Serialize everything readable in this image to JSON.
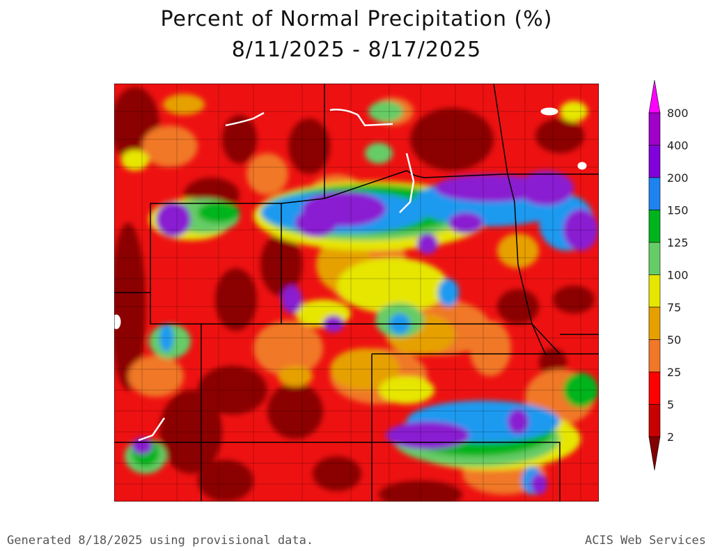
{
  "title": "Percent of Normal Precipitation (%)",
  "subtitle": "8/11/2025 - 8/17/2025",
  "footer_left": "Generated 8/18/2025 using provisional data.",
  "footer_right": "ACIS Web Services",
  "legend": {
    "labels": [
      "800",
      "400",
      "200",
      "150",
      "125",
      "100",
      "75",
      "50",
      "25",
      "5",
      "2"
    ],
    "colors": {
      "top_arrow": "#ff00ff",
      "800": "#a000c8",
      "400": "#8200dc",
      "200": "#1e82f0",
      "150": "#00b41e",
      "125": "#66cc66",
      "100": "#e6e600",
      "75": "#e6a000",
      "50": "#f07828",
      "25": "#ff0000",
      "5": "#c80000",
      "2": "#820000"
    }
  },
  "map_colors": {
    "dark_red": "#8b0000",
    "red": "#ee1111",
    "orange": "#f07828",
    "light_orange": "#e6a000",
    "yellow": "#e6e600",
    "light_green": "#66cc66",
    "green": "#00b41e",
    "blue": "#1e9af0",
    "purple": "#8a1ed2",
    "violet": "#a020c8"
  }
}
